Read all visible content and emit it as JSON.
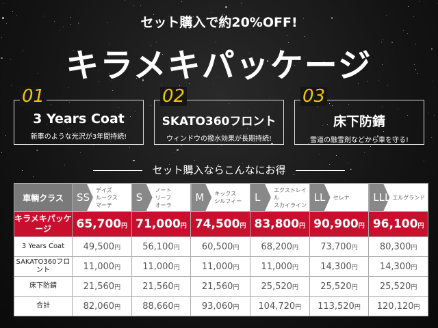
{
  "header": {
    "subtitle": "セット購入で約20%OFF!",
    "title": "キラメキパッケージ"
  },
  "features": [
    {
      "num": "01",
      "title": "3 Years Coat",
      "desc": "新車のような光沢が3年間持続!"
    },
    {
      "num": "02",
      "title": "SKATO360フロント",
      "desc": "ウィンドウの撥水効果が長期持続!"
    },
    {
      "num": "03",
      "title": "床下防錆",
      "desc": "雪道の融雪剤などから車を守る!"
    }
  ],
  "lead": "セット購入ならこんなにお得",
  "table": {
    "corner": "車輌クラス",
    "yen": "円",
    "classes": [
      {
        "code": "SS",
        "cars": [
          "デイズ",
          "ルークス",
          "マーチ"
        ]
      },
      {
        "code": "S",
        "cars": [
          "ノート",
          "リーフ",
          "オーラ"
        ]
      },
      {
        "code": "M",
        "cars": [
          "キックス",
          "シルフィー"
        ]
      },
      {
        "code": "L",
        "cars": [
          "エクストレイル",
          "スカイライン"
        ]
      },
      {
        "code": "LL",
        "cars": [
          "セレナ"
        ]
      },
      {
        "code": "LLL",
        "cars": [
          "エルグランド"
        ]
      }
    ],
    "rows": [
      {
        "label": "キラメキパッケージ",
        "values": [
          "65,700",
          "71,000",
          "74,500",
          "83,800",
          "90,900",
          "96,100"
        ]
      },
      {
        "label": "3 Years Coat",
        "values": [
          "49,500",
          "56,100",
          "60,500",
          "68,200",
          "73,700",
          "80,300"
        ]
      },
      {
        "label": "SAKATO360フロント",
        "values": [
          "11,000",
          "11,000",
          "11,000",
          "11,000",
          "14,300",
          "14,300"
        ]
      },
      {
        "label": "床下防錆",
        "values": [
          "21,560",
          "21,560",
          "21,560",
          "25,520",
          "25,520",
          "25,520"
        ]
      },
      {
        "label": "合計",
        "values": [
          "82,060",
          "88,660",
          "93,060",
          "104,720",
          "113,520",
          "120,120"
        ]
      }
    ]
  },
  "colors": {
    "accent": "#c8102e",
    "number": "#f2c40f"
  }
}
